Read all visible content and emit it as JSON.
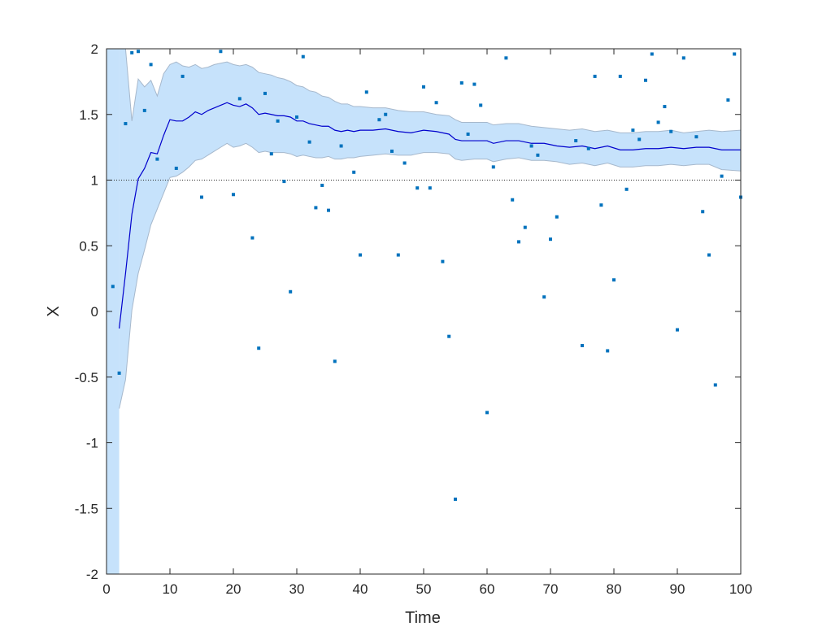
{
  "chart_data": {
    "type": "scatter",
    "title": "",
    "xlabel": "Time",
    "ylabel": "X",
    "xlim": [
      0,
      100
    ],
    "ylim": [
      -2,
      2
    ],
    "xticks": [
      "0",
      "10",
      "20",
      "30",
      "40",
      "50",
      "60",
      "70",
      "80",
      "90",
      "100"
    ],
    "yticks": [
      "2",
      "1.5",
      "1",
      "0.5",
      "0",
      "-0.5",
      "-1",
      "-1.5",
      "-2"
    ],
    "grid": false,
    "legend": "none",
    "reference_line": 1,
    "colors": {
      "points": "#0072BD",
      "mean_line": "#0000CD",
      "band_fill": "#C6E2FB",
      "band_edge": "#A6B8CC",
      "axes": "#262626",
      "reference": "#262626"
    },
    "series": [
      {
        "kind": "points",
        "x": [
          1,
          2,
          3,
          4,
          5,
          6,
          7,
          8,
          11,
          12,
          15,
          18,
          20,
          21,
          23,
          24,
          25,
          26,
          27,
          28,
          29,
          30,
          31,
          32,
          33,
          34,
          35,
          36,
          37,
          39,
          40,
          41,
          43,
          44,
          45,
          46,
          47,
          49,
          50,
          51,
          52,
          53,
          54,
          55,
          56,
          57,
          58,
          59,
          60,
          61,
          63,
          64,
          65,
          66,
          67,
          68,
          69,
          70,
          71,
          74,
          75,
          76,
          77,
          78,
          79,
          80,
          81,
          82,
          83,
          84,
          85,
          86,
          87,
          88,
          89,
          90,
          91,
          93,
          94,
          95,
          96,
          97,
          98,
          99,
          100
        ],
        "y": [
          0.19,
          -0.47,
          1.43,
          1.97,
          1.98,
          1.53,
          1.88,
          1.16,
          1.09,
          1.79,
          0.87,
          1.98,
          0.89,
          1.62,
          0.56,
          -0.28,
          1.66,
          1.2,
          1.45,
          0.99,
          0.15,
          1.48,
          1.94,
          1.29,
          0.79,
          0.96,
          0.77,
          -0.38,
          1.26,
          1.06,
          0.43,
          1.67,
          1.46,
          1.5,
          1.22,
          0.43,
          1.13,
          0.94,
          1.71,
          0.94,
          1.59,
          0.38,
          -0.19,
          -1.43,
          1.74,
          1.35,
          1.73,
          1.57,
          -0.77,
          1.1,
          1.93,
          0.85,
          0.53,
          0.64,
          1.26,
          1.19,
          0.11,
          0.55,
          0.72,
          1.3,
          -0.26,
          1.24,
          1.79,
          0.81,
          -0.3,
          0.24,
          1.79,
          0.93,
          1.38,
          1.31,
          1.76,
          1.96,
          1.44,
          1.56,
          1.37,
          -0.14,
          1.93,
          1.33,
          0.76,
          0.43,
          -0.56,
          1.03,
          1.61,
          1.96,
          0.87
        ]
      },
      {
        "kind": "mean",
        "x": [
          2,
          3,
          4,
          5,
          6,
          7,
          8,
          9,
          10,
          11,
          12,
          13,
          14,
          15,
          16,
          17,
          18,
          19,
          20,
          21,
          22,
          23,
          24,
          25,
          26,
          27,
          28,
          29,
          30,
          31,
          32,
          33,
          34,
          35,
          36,
          37,
          38,
          39,
          40,
          42,
          44,
          46,
          48,
          50,
          52,
          54,
          55,
          56,
          58,
          60,
          61,
          63,
          65,
          67,
          69,
          71,
          73,
          75,
          77,
          79,
          81,
          83,
          85,
          87,
          89,
          91,
          93,
          95,
          97,
          100
        ],
        "y": [
          -0.13,
          0.29,
          0.74,
          1.01,
          1.09,
          1.21,
          1.2,
          1.34,
          1.46,
          1.45,
          1.45,
          1.48,
          1.52,
          1.5,
          1.53,
          1.55,
          1.57,
          1.59,
          1.57,
          1.56,
          1.58,
          1.55,
          1.5,
          1.51,
          1.5,
          1.49,
          1.49,
          1.48,
          1.45,
          1.45,
          1.43,
          1.42,
          1.41,
          1.41,
          1.38,
          1.37,
          1.38,
          1.37,
          1.38,
          1.38,
          1.39,
          1.37,
          1.36,
          1.38,
          1.37,
          1.35,
          1.31,
          1.3,
          1.3,
          1.3,
          1.28,
          1.3,
          1.3,
          1.28,
          1.28,
          1.26,
          1.25,
          1.26,
          1.24,
          1.26,
          1.23,
          1.23,
          1.24,
          1.24,
          1.25,
          1.24,
          1.25,
          1.25,
          1.23,
          1.23
        ]
      },
      {
        "kind": "band_upper",
        "x": [
          2,
          3,
          4,
          5,
          6,
          7,
          8,
          9,
          10,
          11,
          12,
          13,
          14,
          15,
          16,
          17,
          18,
          19,
          20,
          21,
          22,
          23,
          24,
          25,
          26,
          27,
          28,
          29,
          30,
          31,
          32,
          33,
          34,
          35,
          36,
          37,
          38,
          39,
          40,
          42,
          44,
          46,
          48,
          50,
          52,
          54,
          55,
          56,
          58,
          60,
          61,
          63,
          65,
          67,
          69,
          71,
          73,
          75,
          77,
          79,
          81,
          83,
          85,
          87,
          89,
          91,
          93,
          95,
          97,
          100
        ],
        "y": [
          2,
          2,
          1.45,
          1.77,
          1.71,
          1.76,
          1.64,
          1.81,
          1.88,
          1.9,
          1.87,
          1.86,
          1.88,
          1.85,
          1.86,
          1.88,
          1.89,
          1.9,
          1.88,
          1.87,
          1.88,
          1.86,
          1.82,
          1.81,
          1.8,
          1.78,
          1.77,
          1.75,
          1.72,
          1.71,
          1.68,
          1.67,
          1.64,
          1.63,
          1.6,
          1.58,
          1.58,
          1.56,
          1.56,
          1.55,
          1.55,
          1.53,
          1.52,
          1.52,
          1.5,
          1.49,
          1.46,
          1.44,
          1.44,
          1.44,
          1.42,
          1.43,
          1.43,
          1.41,
          1.4,
          1.39,
          1.38,
          1.39,
          1.37,
          1.38,
          1.36,
          1.36,
          1.37,
          1.37,
          1.38,
          1.36,
          1.37,
          1.38,
          1.37,
          1.38
        ]
      },
      {
        "kind": "band_lower",
        "x": [
          2,
          3,
          4,
          5,
          6,
          7,
          8,
          9,
          10,
          11,
          12,
          13,
          14,
          15,
          16,
          17,
          18,
          19,
          20,
          21,
          22,
          23,
          24,
          25,
          26,
          27,
          28,
          29,
          30,
          31,
          32,
          33,
          34,
          35,
          36,
          37,
          38,
          39,
          40,
          42,
          44,
          46,
          48,
          50,
          52,
          54,
          55,
          56,
          58,
          60,
          61,
          63,
          65,
          67,
          69,
          71,
          73,
          75,
          77,
          79,
          81,
          83,
          85,
          87,
          89,
          91,
          93,
          95,
          97,
          100
        ],
        "y": [
          -0.74,
          -0.52,
          0.01,
          0.29,
          0.47,
          0.66,
          0.78,
          0.9,
          1.02,
          1.03,
          1.06,
          1.1,
          1.15,
          1.16,
          1.19,
          1.22,
          1.25,
          1.28,
          1.25,
          1.26,
          1.28,
          1.25,
          1.21,
          1.22,
          1.21,
          1.21,
          1.21,
          1.2,
          1.18,
          1.19,
          1.18,
          1.17,
          1.17,
          1.18,
          1.16,
          1.16,
          1.17,
          1.17,
          1.18,
          1.19,
          1.2,
          1.19,
          1.19,
          1.21,
          1.21,
          1.2,
          1.16,
          1.15,
          1.16,
          1.16,
          1.14,
          1.16,
          1.17,
          1.15,
          1.15,
          1.14,
          1.12,
          1.13,
          1.11,
          1.13,
          1.1,
          1.1,
          1.11,
          1.11,
          1.12,
          1.11,
          1.12,
          1.12,
          1.08,
          1.07
        ]
      }
    ]
  }
}
